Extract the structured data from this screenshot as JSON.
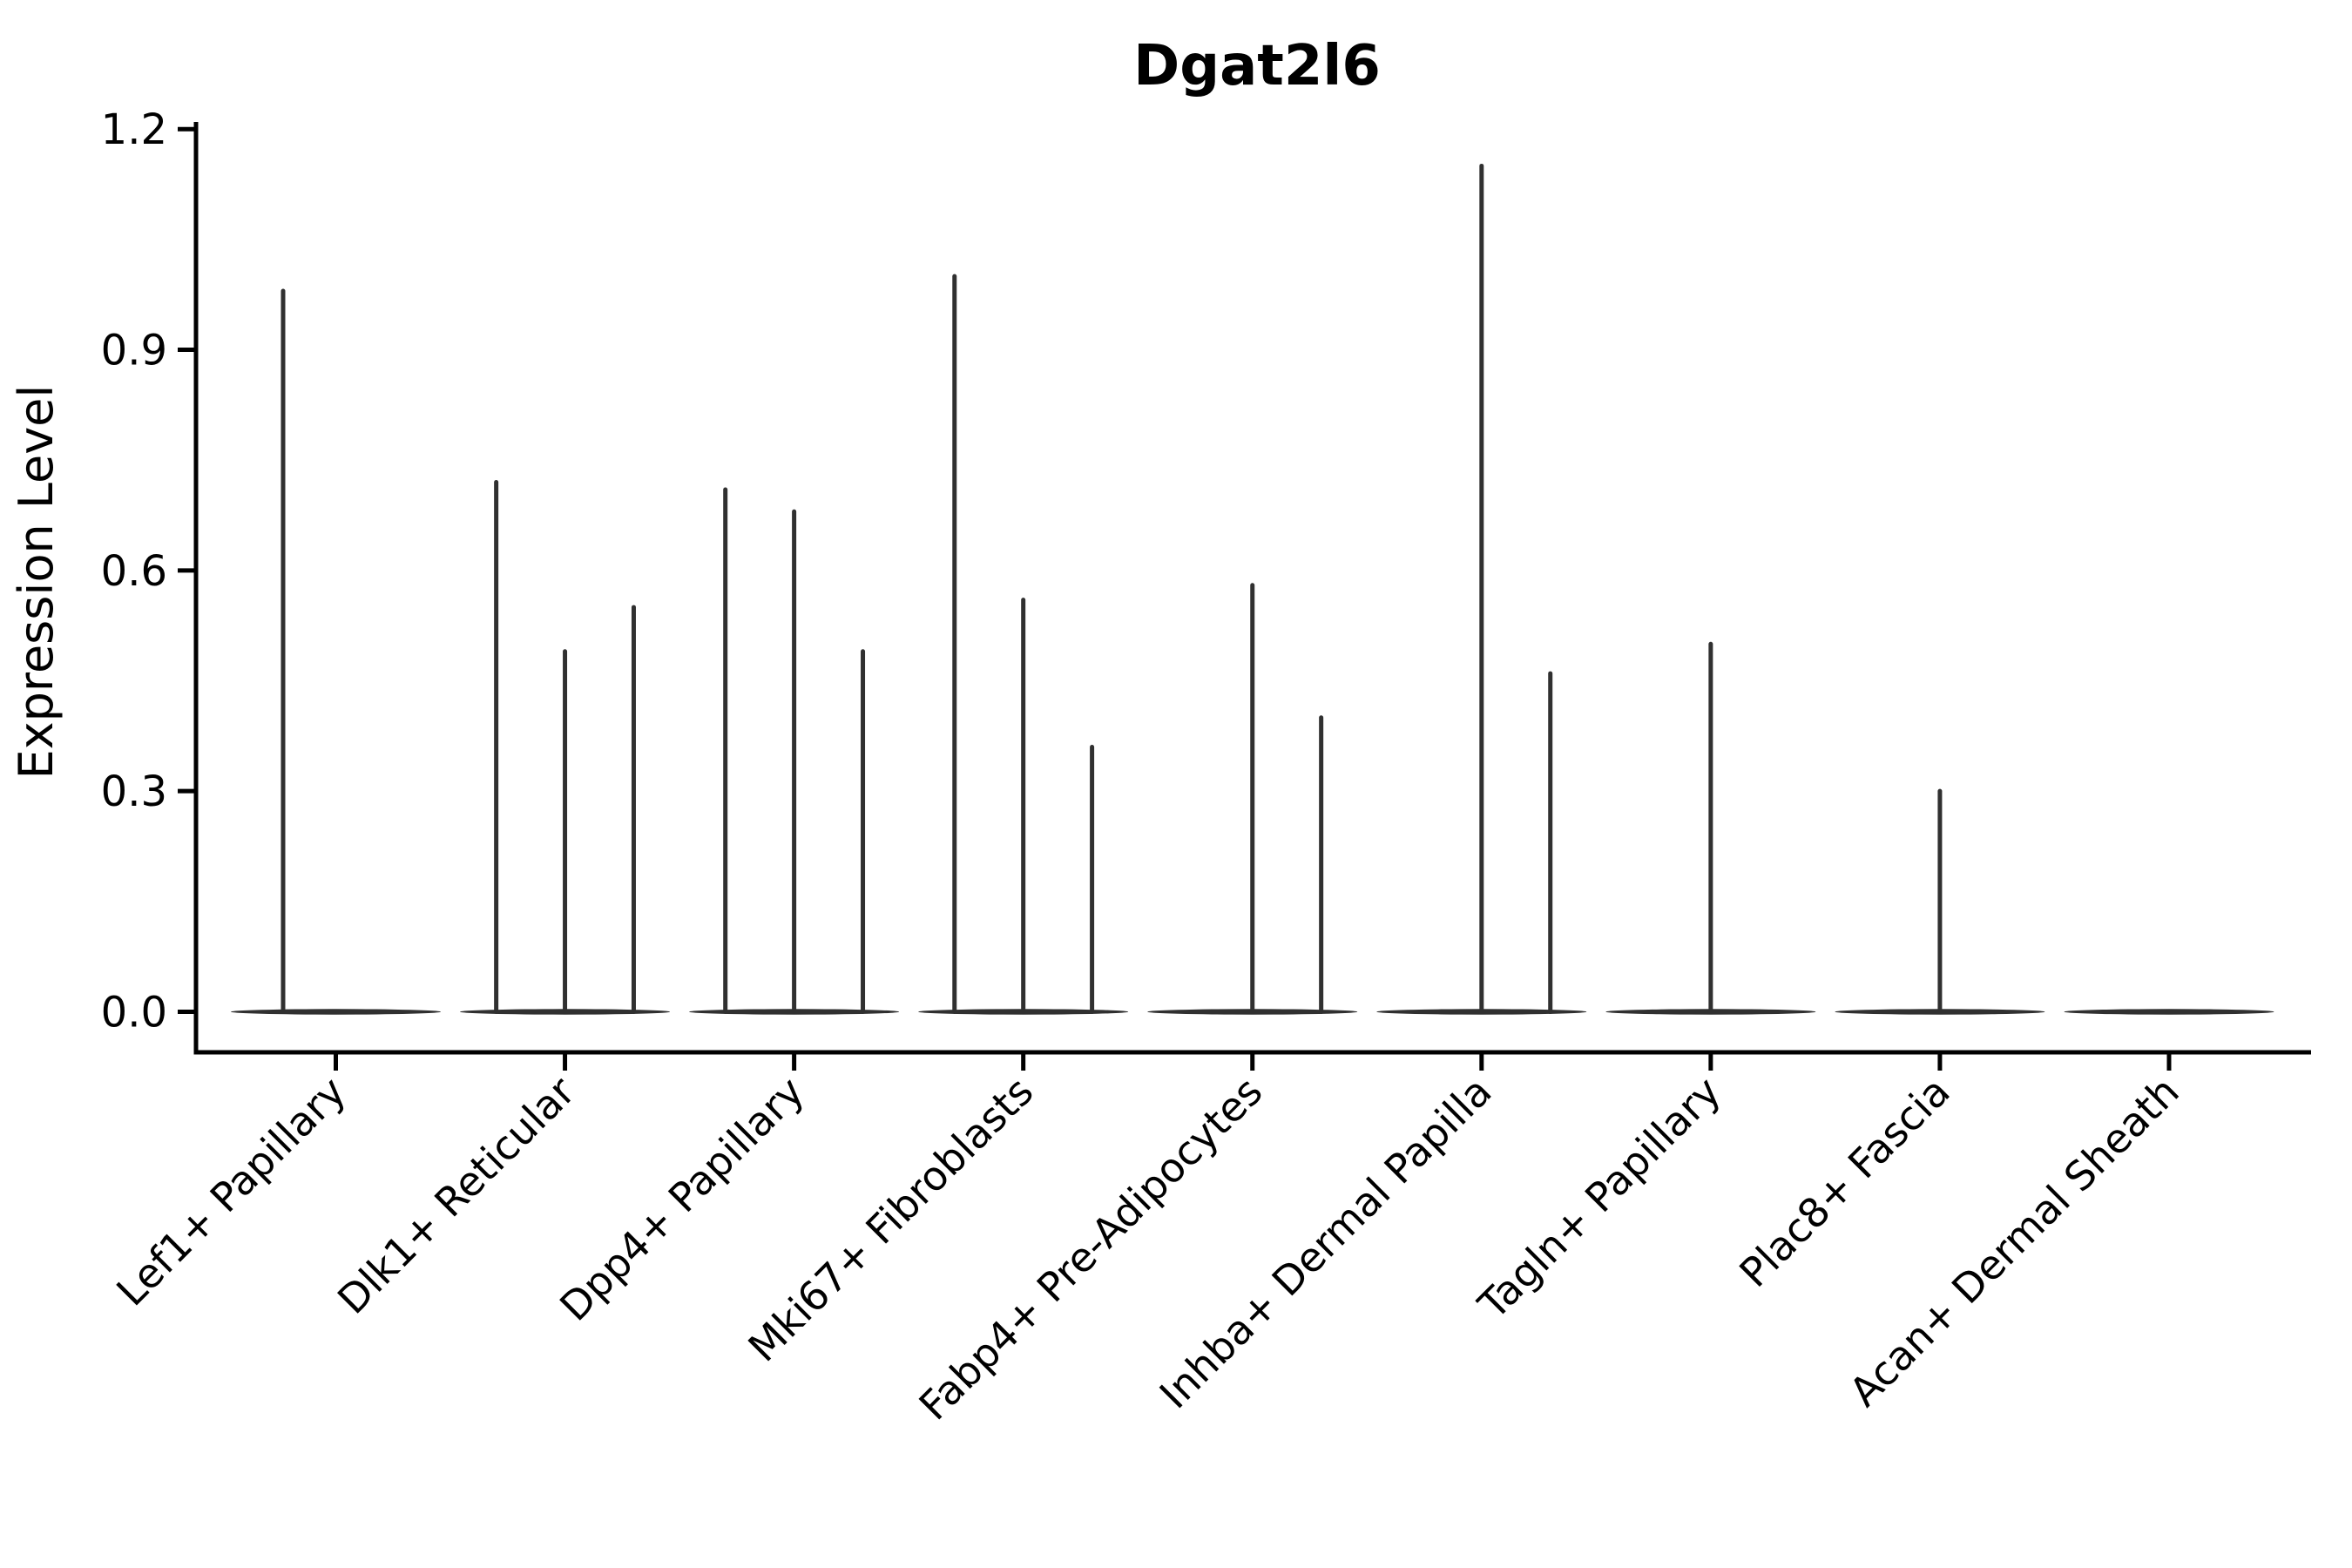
{
  "title": "Dgat2l6",
  "y_axis": {
    "label": "Expression Level",
    "tick_labels": [
      "0.0",
      "0.3",
      "0.6",
      "0.9",
      "1.2"
    ],
    "tick_values": [
      0,
      0.3,
      0.6,
      0.9,
      1.2
    ],
    "range": [
      0,
      1.2
    ]
  },
  "x_axis": {
    "categories": [
      "Lef1+ Papillary",
      "Dlk1+ Reticular",
      "Dpp4+ Papillary",
      "Mki67+ Fibroblasts",
      "Fabp4+ Pre-Adipocytes",
      "Inhba+ Dermal Papilla",
      "Tagln+ Papillary",
      "Plac8+ Fascia",
      "Acan+ Dermal Sheath"
    ]
  },
  "chart_data": {
    "type": "violin",
    "title": "Dgat2l6",
    "xlabel": "",
    "ylabel": "Expression Level",
    "ylim": [
      0,
      1.2
    ],
    "yticks": [
      0,
      0.3,
      0.6,
      0.9,
      1.2
    ],
    "grid": false,
    "legend": null,
    "categories": [
      "Lef1+ Papillary",
      "Dlk1+ Reticular",
      "Dpp4+ Papillary",
      "Mki67+ Fibroblasts",
      "Fabp4+ Pre-Adipocytes",
      "Inhba+ Dermal Papilla",
      "Tagln+ Papillary",
      "Plac8+ Fascia",
      "Acan+ Dermal Sheath"
    ],
    "series": [
      {
        "name": "Lef1+ Papillary",
        "base_value": 0,
        "spikes": [
          {
            "pos": -0.23,
            "value": 0.98
          }
        ]
      },
      {
        "name": "Dlk1+ Reticular",
        "base_value": 0,
        "spikes": [
          {
            "pos": -0.3,
            "value": 0.72
          },
          {
            "pos": 0,
            "value": 0.49
          },
          {
            "pos": 0.3,
            "value": 0.55
          }
        ]
      },
      {
        "name": "Dpp4+ Papillary",
        "base_value": 0,
        "spikes": [
          {
            "pos": -0.3,
            "value": 0.71
          },
          {
            "pos": 0,
            "value": 0.68
          },
          {
            "pos": 0.3,
            "value": 0.49
          }
        ]
      },
      {
        "name": "Mki67+ Fibroblasts",
        "base_value": 0,
        "spikes": [
          {
            "pos": -0.3,
            "value": 1.0
          },
          {
            "pos": 0,
            "value": 0.56
          },
          {
            "pos": 0.3,
            "value": 0.36
          }
        ]
      },
      {
        "name": "Fabp4+ Pre-Adipocytes",
        "base_value": 0,
        "spikes": [
          {
            "pos": 0,
            "value": 0.58
          },
          {
            "pos": 0.3,
            "value": 0.4
          }
        ]
      },
      {
        "name": "Inhba+ Dermal Papilla",
        "base_value": 0,
        "spikes": [
          {
            "pos": 0,
            "value": 1.15
          },
          {
            "pos": 0.3,
            "value": 0.46
          }
        ]
      },
      {
        "name": "Tagln+ Papillary",
        "base_value": 0,
        "spikes": [
          {
            "pos": 0,
            "value": 0.5
          }
        ]
      },
      {
        "name": "Plac8+ Fascia",
        "base_value": 0,
        "spikes": [
          {
            "pos": 0,
            "value": 0.3
          }
        ]
      },
      {
        "name": "Acan+ Dermal Sheath",
        "base_value": 0,
        "spikes": []
      }
    ]
  },
  "colors": {
    "violin": "#303030",
    "axis": "#000000",
    "text": "#000000",
    "background": "#ffffff"
  }
}
